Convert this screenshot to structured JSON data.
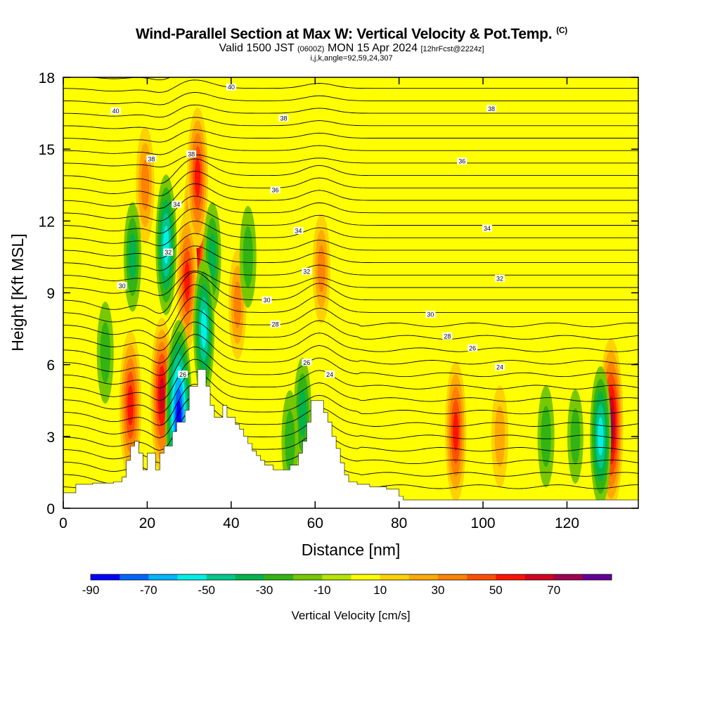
{
  "header": {
    "title": "Wind-Parallel Section at Max W: Vertical Velocity & Pot.Temp.",
    "copyright": "(C)",
    "valid_prefix": "Valid 1500 JST",
    "valid_utc": "(0600Z)",
    "valid_date": "MON 15 Apr 2024",
    "forecast": "[12hrFcst@2224z]",
    "indices": "i,j,k,angle=92,59,24,307"
  },
  "chart_data": {
    "type": "heatmap",
    "xlabel": "Distance [nm]",
    "ylabel": "Height [Kft MSL]",
    "xlim": [
      0,
      137
    ],
    "ylim": [
      0,
      18
    ],
    "x_ticks": [
      "0",
      "20",
      "40",
      "60",
      "80",
      "100",
      "120"
    ],
    "y_ticks": [
      "0",
      "3",
      "6",
      "9",
      "12",
      "15",
      "18"
    ],
    "x_tick_values": [
      0,
      20,
      40,
      60,
      80,
      100,
      120
    ],
    "y_tick_values": [
      0,
      3,
      6,
      9,
      12,
      15,
      18
    ],
    "background_color": "#ffff00",
    "colorbar": {
      "label": "Vertical Velocity [cm/s]",
      "tick_labels": [
        "-90",
        "-70",
        "-50",
        "-30",
        "-10",
        "10",
        "30",
        "50",
        "70"
      ],
      "boundaries": [
        -90,
        -80,
        -70,
        -60,
        -50,
        -40,
        -30,
        -20,
        -10,
        0,
        10,
        20,
        30,
        40,
        50,
        60,
        70,
        80
      ],
      "colors": [
        "#0000ff",
        "#0064ff",
        "#00b4ff",
        "#00f0e6",
        "#00c88c",
        "#00b44b",
        "#32b414",
        "#78c800",
        "#b4e600",
        "#ffff00",
        "#ffd200",
        "#ffaa00",
        "#ff8200",
        "#ff5000",
        "#ff1400",
        "#d2001e",
        "#a00050",
        "#640096"
      ]
    },
    "terrain_kft": [
      [
        0,
        0.65
      ],
      [
        3,
        0.65
      ],
      [
        3,
        1
      ],
      [
        7,
        1
      ],
      [
        7,
        1.05
      ],
      [
        12,
        1.05
      ],
      [
        12,
        1.1
      ],
      [
        14,
        1.1
      ],
      [
        14,
        1.3
      ],
      [
        15,
        1.3
      ],
      [
        15,
        2
      ],
      [
        16,
        2
      ],
      [
        16,
        2.6
      ],
      [
        17,
        2.6
      ],
      [
        17,
        2.8
      ],
      [
        18,
        2.8
      ],
      [
        18,
        2.3
      ],
      [
        19,
        2.3
      ],
      [
        19,
        1.6
      ],
      [
        20,
        1.6
      ],
      [
        20,
        2.3
      ],
      [
        22,
        2.3
      ],
      [
        22,
        1.6
      ],
      [
        23,
        1.6
      ],
      [
        23,
        2.3
      ],
      [
        24,
        2.3
      ],
      [
        24,
        2.6
      ],
      [
        26,
        2.6
      ],
      [
        26,
        3.2
      ],
      [
        27,
        3.2
      ],
      [
        27,
        3.6
      ],
      [
        29,
        3.6
      ],
      [
        29,
        4.1
      ],
      [
        30,
        4.1
      ],
      [
        30,
        5.1
      ],
      [
        32,
        5.1
      ],
      [
        32,
        5.8
      ],
      [
        34,
        5.8
      ],
      [
        34,
        5.1
      ],
      [
        35,
        5.1
      ],
      [
        35,
        4.3
      ],
      [
        36,
        4.3
      ],
      [
        36,
        3.8
      ],
      [
        38,
        3.8
      ],
      [
        38,
        4.3
      ],
      [
        39,
        4.3
      ],
      [
        39,
        3.8
      ],
      [
        41,
        3.8
      ],
      [
        41,
        3.5
      ],
      [
        42,
        3.5
      ],
      [
        42,
        3.3
      ],
      [
        43,
        3.3
      ],
      [
        43,
        3
      ],
      [
        44,
        3
      ],
      [
        44,
        2.7
      ],
      [
        45,
        2.7
      ],
      [
        45,
        2.4
      ],
      [
        46,
        2.4
      ],
      [
        46,
        2.2
      ],
      [
        47,
        2.2
      ],
      [
        47,
        2
      ],
      [
        48,
        2
      ],
      [
        48,
        1.8
      ],
      [
        50,
        1.8
      ],
      [
        50,
        1.6
      ],
      [
        54,
        1.6
      ],
      [
        54,
        1.8
      ],
      [
        56,
        1.8
      ],
      [
        56,
        2.3
      ],
      [
        57,
        2.3
      ],
      [
        57,
        2.8
      ],
      [
        58,
        2.8
      ],
      [
        58,
        3.6
      ],
      [
        59,
        3.6
      ],
      [
        59,
        4.5
      ],
      [
        62,
        4.5
      ],
      [
        62,
        4
      ],
      [
        63,
        4
      ],
      [
        63,
        3.6
      ],
      [
        64,
        3.6
      ],
      [
        64,
        3
      ],
      [
        65,
        3
      ],
      [
        65,
        2.5
      ],
      [
        66,
        2.5
      ],
      [
        66,
        1.9
      ],
      [
        67,
        1.9
      ],
      [
        67,
        1.4
      ],
      [
        68,
        1.4
      ],
      [
        68,
        1.1
      ],
      [
        70,
        1.1
      ],
      [
        70,
        1
      ],
      [
        73,
        1
      ],
      [
        73,
        0.9
      ],
      [
        77,
        0.9
      ],
      [
        77,
        0.8
      ],
      [
        80,
        0.8
      ],
      [
        80,
        0.5
      ],
      [
        81,
        0.5
      ],
      [
        81,
        0.35
      ],
      [
        137,
        0.35
      ]
    ],
    "updrafts": [
      {
        "x": 31.5,
        "y": 11.5,
        "value": 70
      },
      {
        "x": 29.5,
        "y": 9.5,
        "value": 50
      },
      {
        "x": 32,
        "y": 13.8,
        "value": 50
      },
      {
        "x": 23.5,
        "y": 4.7,
        "value": 60
      },
      {
        "x": 16,
        "y": 4.3,
        "value": 55
      },
      {
        "x": 19.5,
        "y": 13.5,
        "value": 35
      },
      {
        "x": 93.5,
        "y": 3.2,
        "value": 50
      },
      {
        "x": 130.5,
        "y": 3.5,
        "value": 70
      },
      {
        "x": 61.5,
        "y": 10,
        "value": 30
      },
      {
        "x": 41.5,
        "y": 8.5,
        "value": 30
      },
      {
        "x": 104,
        "y": 3,
        "value": 25
      }
    ],
    "downdrafts": [
      {
        "x": 27.5,
        "y": 3.8,
        "value": -85
      },
      {
        "x": 24.5,
        "y": 11,
        "value": -50
      },
      {
        "x": 16.5,
        "y": 10.5,
        "value": -30
      },
      {
        "x": 35.5,
        "y": 10.5,
        "value": -30
      },
      {
        "x": 44,
        "y": 10.5,
        "value": -25
      },
      {
        "x": 57,
        "y": 4,
        "value": -30
      },
      {
        "x": 10,
        "y": 6.5,
        "value": -25
      },
      {
        "x": 128,
        "y": 3,
        "value": -50
      },
      {
        "x": 122,
        "y": 3,
        "value": -20
      },
      {
        "x": 115,
        "y": 3,
        "value": -25
      },
      {
        "x": 54,
        "y": 2.8,
        "value": -25
      },
      {
        "x": 33.5,
        "y": 7.5,
        "value": -50
      }
    ],
    "isentrope_labels": [
      {
        "x": 40,
        "y": 17.6,
        "text": "40"
      },
      {
        "x": 12.5,
        "y": 16.6,
        "text": "40"
      },
      {
        "x": 102,
        "y": 16.7,
        "text": "38"
      },
      {
        "x": 52.5,
        "y": 16.3,
        "text": "38"
      },
      {
        "x": 21,
        "y": 14.6,
        "text": "38"
      },
      {
        "x": 30.5,
        "y": 14.8,
        "text": "38"
      },
      {
        "x": 95,
        "y": 14.5,
        "text": "36"
      },
      {
        "x": 50.5,
        "y": 13.3,
        "text": "36"
      },
      {
        "x": 27,
        "y": 12.7,
        "text": "34"
      },
      {
        "x": 56,
        "y": 11.6,
        "text": "34"
      },
      {
        "x": 101,
        "y": 11.7,
        "text": "34"
      },
      {
        "x": 25,
        "y": 10.7,
        "text": "32"
      },
      {
        "x": 58,
        "y": 9.9,
        "text": "32"
      },
      {
        "x": 104,
        "y": 9.6,
        "text": "32"
      },
      {
        "x": 14,
        "y": 9.3,
        "text": "30"
      },
      {
        "x": 48.5,
        "y": 8.7,
        "text": "30"
      },
      {
        "x": 87.5,
        "y": 8.1,
        "text": "30"
      },
      {
        "x": 50.5,
        "y": 7.7,
        "text": "28"
      },
      {
        "x": 91.5,
        "y": 7.2,
        "text": "28"
      },
      {
        "x": 97.5,
        "y": 6.7,
        "text": "26"
      },
      {
        "x": 58,
        "y": 6.1,
        "text": "26"
      },
      {
        "x": 104,
        "y": 5.9,
        "text": "24"
      },
      {
        "x": 63.5,
        "y": 5.6,
        "text": "24"
      },
      {
        "x": 28.5,
        "y": 5.6,
        "text": "26"
      }
    ]
  }
}
